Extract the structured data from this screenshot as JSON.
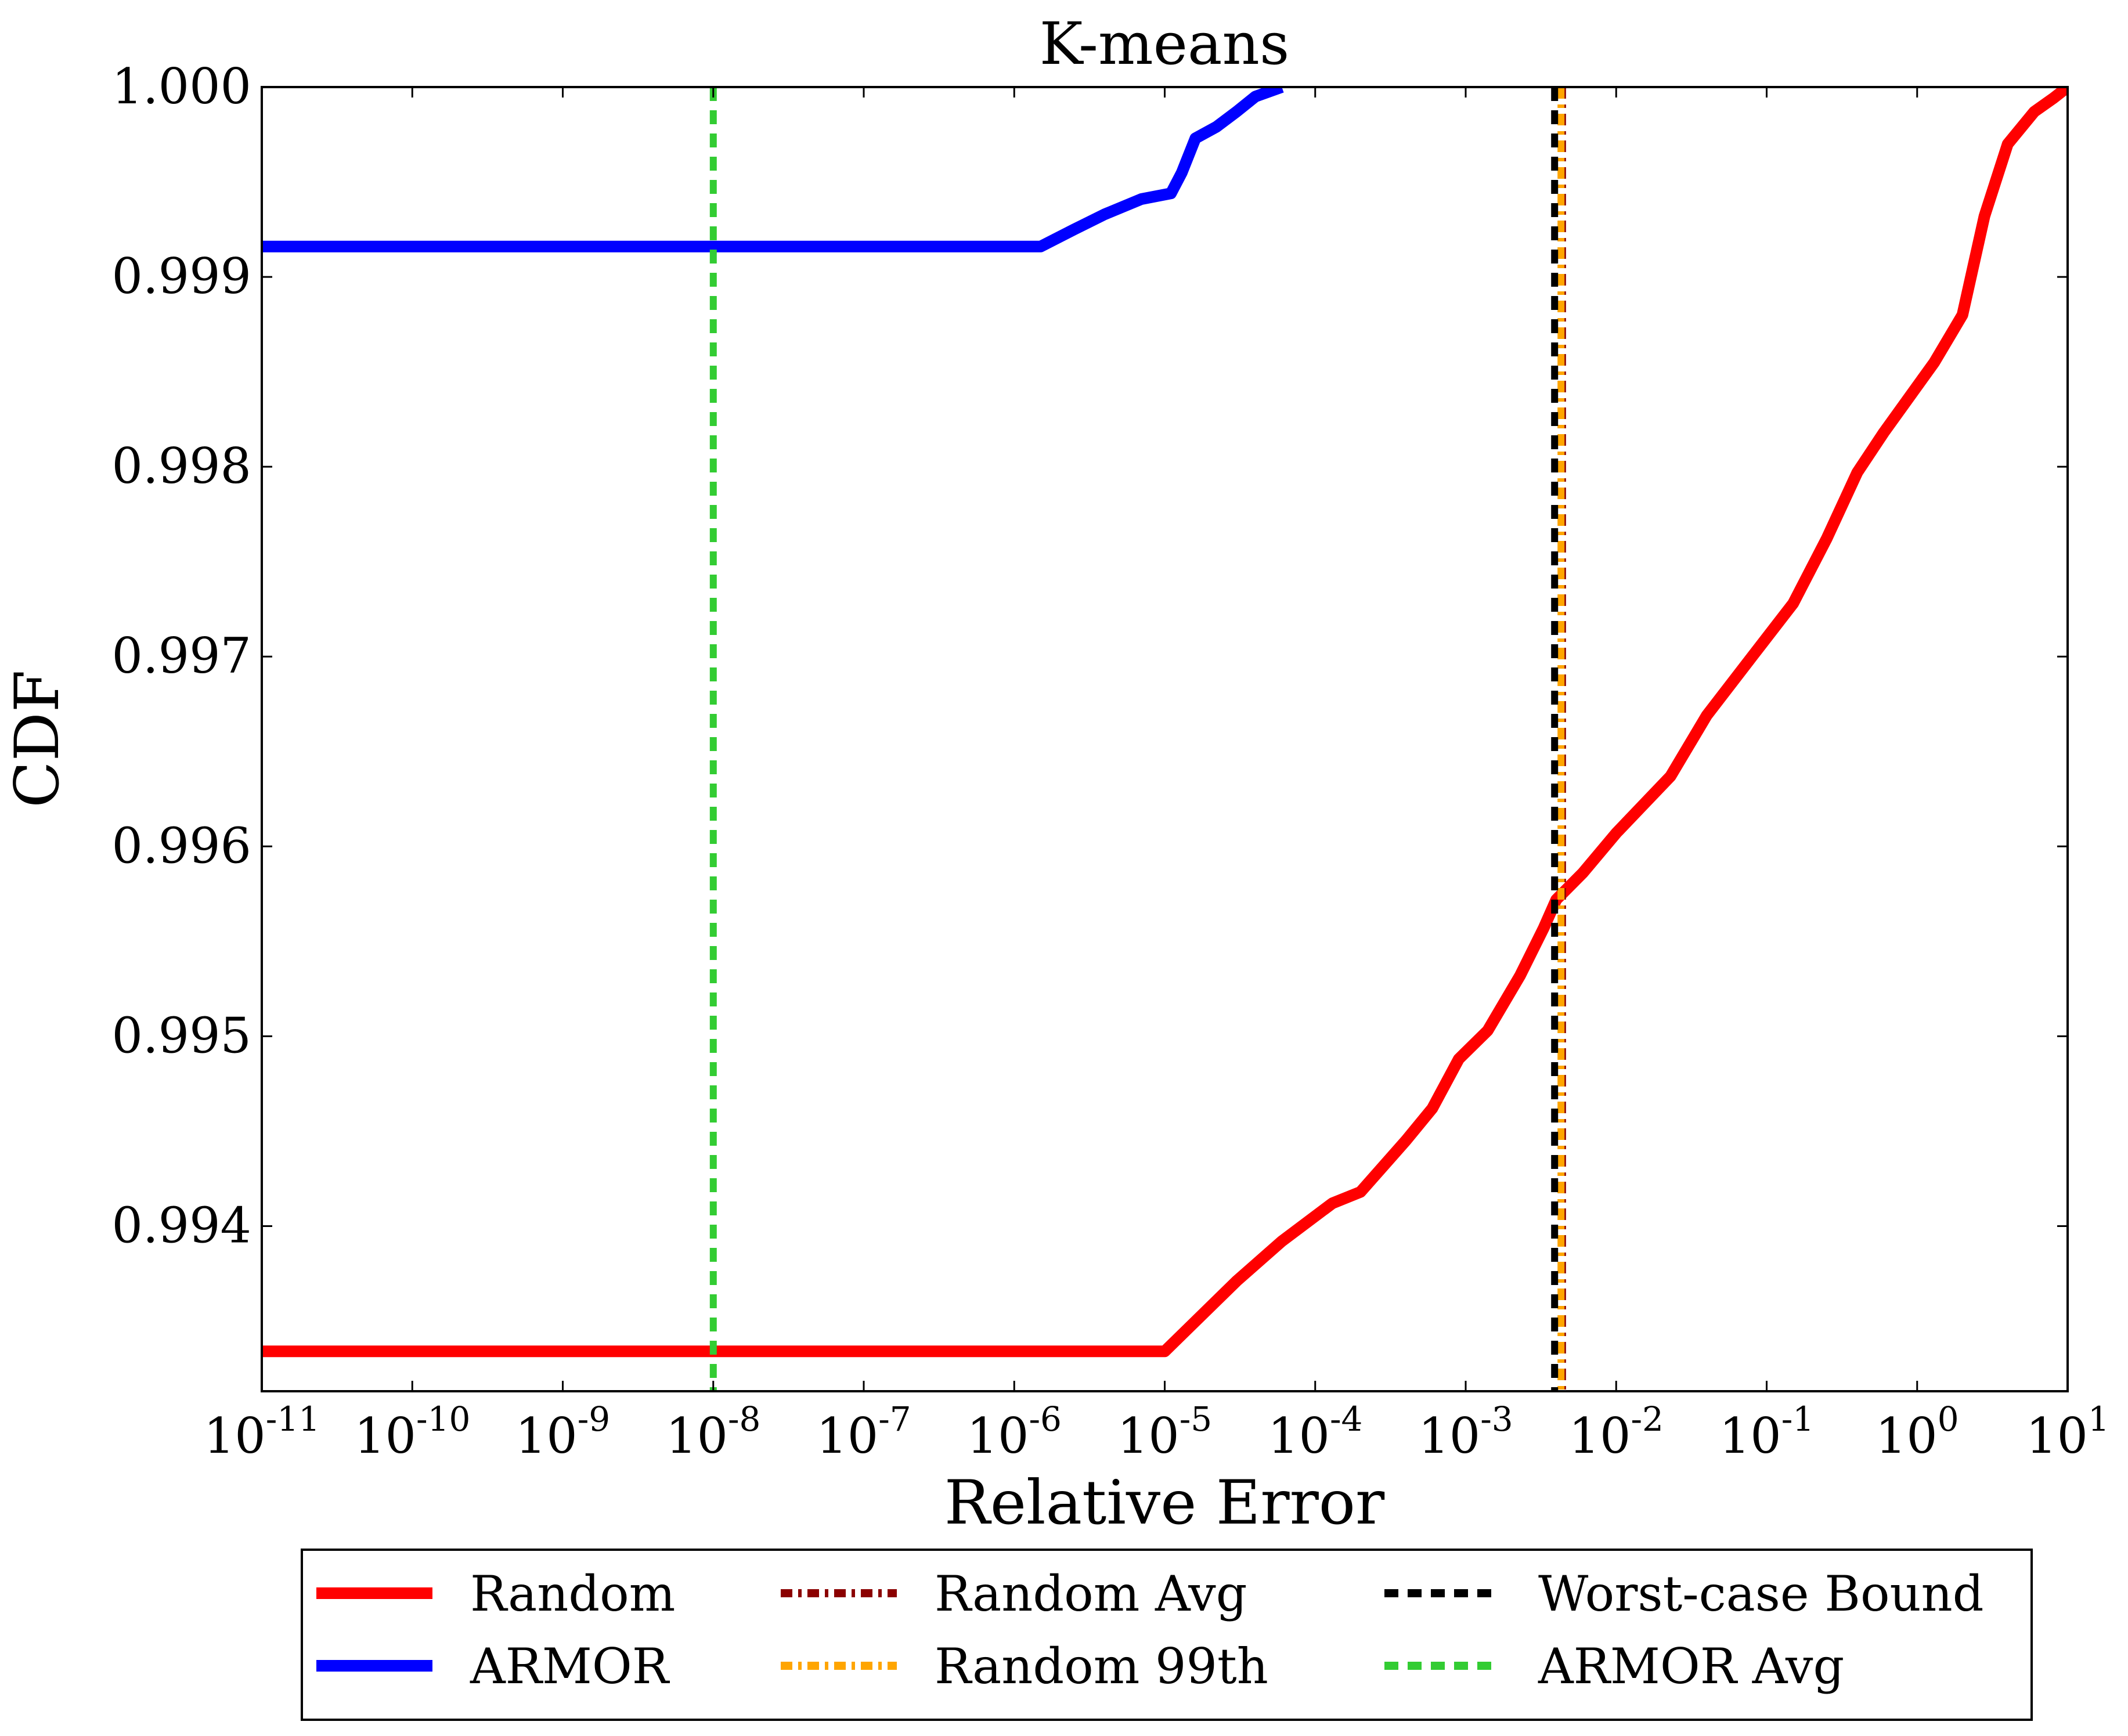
{
  "chart_data": {
    "type": "line",
    "title": "K-means",
    "xlabel": "Relative Error",
    "ylabel": "CDF",
    "x_scale": "log",
    "xlim": [
      1e-11,
      10
    ],
    "ylim": [
      0.99313,
      1.0
    ],
    "x_ticks": [
      {
        "base": "10",
        "exp": "-11",
        "value": 1e-11
      },
      {
        "base": "10",
        "exp": "-10",
        "value": 1e-10
      },
      {
        "base": "10",
        "exp": "-9",
        "value": 1e-09
      },
      {
        "base": "10",
        "exp": "-8",
        "value": 1e-08
      },
      {
        "base": "10",
        "exp": "-7",
        "value": 1e-07
      },
      {
        "base": "10",
        "exp": "-6",
        "value": 1e-06
      },
      {
        "base": "10",
        "exp": "-5",
        "value": 1e-05
      },
      {
        "base": "10",
        "exp": "-4",
        "value": 0.0001
      },
      {
        "base": "10",
        "exp": "-3",
        "value": 0.001
      },
      {
        "base": "10",
        "exp": "-2",
        "value": 0.01
      },
      {
        "base": "10",
        "exp": "-1",
        "value": 0.1
      },
      {
        "base": "10",
        "exp": "0",
        "value": 1
      },
      {
        "base": "10",
        "exp": "1",
        "value": 10
      }
    ],
    "y_ticks": [
      "0.994",
      "0.995",
      "0.996",
      "0.997",
      "0.998",
      "0.999",
      "1.000"
    ],
    "grid": false,
    "legend_position": "below plot",
    "series": [
      {
        "name": "Random",
        "color": "#ff0000",
        "style": "solid",
        "points": [
          [
            1e-11,
            0.99334
          ],
          [
            1e-05,
            0.99334
          ],
          [
            3e-05,
            0.99371
          ],
          [
            6e-05,
            0.99392
          ],
          [
            0.00013,
            0.99412
          ],
          [
            0.0002,
            0.99418
          ],
          [
            0.0004,
            0.99445
          ],
          [
            0.0006,
            0.99462
          ],
          [
            0.0009,
            0.99488
          ],
          [
            0.0014,
            0.99503
          ],
          [
            0.0023,
            0.99532
          ],
          [
            0.0033,
            0.99557
          ],
          [
            0.004,
            0.99572
          ],
          [
            0.006,
            0.99586
          ],
          [
            0.01,
            0.99607
          ],
          [
            0.023,
            0.99637
          ],
          [
            0.04,
            0.99669
          ],
          [
            0.08,
            0.997
          ],
          [
            0.15,
            0.99728
          ],
          [
            0.25,
            0.99762
          ],
          [
            0.4,
            0.99797
          ],
          [
            0.6,
            0.99818
          ],
          [
            1.3,
            0.99855
          ],
          [
            2,
            0.9988
          ],
          [
            2.8,
            0.99932
          ],
          [
            4,
            0.9997
          ],
          [
            6,
            0.99987
          ],
          [
            8,
            0.99994
          ],
          [
            10,
            1.0
          ]
        ]
      },
      {
        "name": "ARMOR",
        "color": "#0000ff",
        "style": "solid",
        "points": [
          [
            1e-11,
            0.99916
          ],
          [
            1.5e-06,
            0.99916
          ],
          [
            2.5e-06,
            0.99925
          ],
          [
            4e-06,
            0.99933
          ],
          [
            7e-06,
            0.99941
          ],
          [
            1.1e-05,
            0.99944
          ],
          [
            1.3e-05,
            0.99955
          ],
          [
            1.6e-05,
            0.99973
          ],
          [
            2.2e-05,
            0.99979
          ],
          [
            3e-05,
            0.99987
          ],
          [
            4e-05,
            0.99995
          ],
          [
            6e-05,
            1.0
          ]
        ]
      },
      {
        "name": "Random Avg",
        "color": "#8b0000",
        "style": "dashdot",
        "vline_x": 0.0044
      },
      {
        "name": "Random 99th",
        "color": "#ffa500",
        "style": "dashdot",
        "vline_x": 0.0043
      },
      {
        "name": "Worst-case Bound",
        "color": "#000000",
        "style": "dashed",
        "vline_x": 0.0039
      },
      {
        "name": "ARMOR Avg",
        "color": "#33cc33",
        "style": "dashed",
        "vline_x": 1e-08
      }
    ]
  }
}
